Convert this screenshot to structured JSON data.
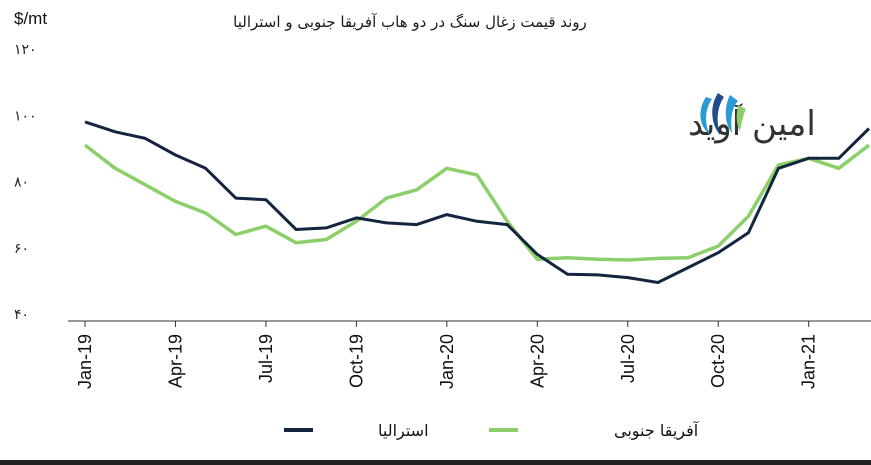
{
  "chart_data": {
    "type": "line",
    "title": "روند قیمت زغال سنگ در دو هاب آفریقا جنوبی و استرالیا",
    "unit_label": "$/mt",
    "ylim": [
      40,
      120
    ],
    "yticks": [
      40,
      60,
      80,
      100,
      120
    ],
    "ytick_labels": [
      "۴۰",
      "۶۰",
      "۸۰",
      "۱۰۰",
      "۱۲۰"
    ],
    "x": [
      "Jan-19",
      "Feb-19",
      "Mar-19",
      "Apr-19",
      "May-19",
      "Jun-19",
      "Jul-19",
      "Aug-19",
      "Sep-19",
      "Oct-19",
      "Nov-19",
      "Dec-19",
      "Jan-20",
      "Feb-20",
      "Mar-20",
      "Apr-20",
      "May-20",
      "Jun-20",
      "Jul-20",
      "Aug-20",
      "Sep-20",
      "Oct-20",
      "Nov-20",
      "Dec-20",
      "Jan-21",
      "Feb-21",
      "Mar-21"
    ],
    "xtick_labels": [
      "Jan-19",
      "Apr-19",
      "Jul-19",
      "Oct-19",
      "Jan-20",
      "Apr-20",
      "Jul-20",
      "Oct-20",
      "Jan-21"
    ],
    "xtick_indices": [
      0,
      3,
      6,
      9,
      12,
      15,
      18,
      21,
      24
    ],
    "series": [
      {
        "name": "استرالیا",
        "color": "#14253f",
        "values": [
          98,
          95,
          93,
          88,
          84,
          75,
          74.5,
          65.5,
          66,
          69,
          67.5,
          67,
          70,
          68,
          67,
          58,
          52,
          51.8,
          51,
          49.5,
          54,
          58.5,
          64.5,
          84,
          87,
          87,
          96
        ]
      },
      {
        "name": "آفریقا جنوبی",
        "color": "#8ccf6a",
        "values": [
          91,
          84,
          79,
          74,
          70.5,
          64,
          66.5,
          61.5,
          62.5,
          68,
          75,
          77.5,
          84,
          82,
          68,
          56.5,
          57,
          56.5,
          56.3,
          56.8,
          57,
          60.5,
          69.5,
          85,
          87,
          84,
          91
        ]
      }
    ],
    "grid": false,
    "legend_placement": "bottom",
    "logo": {
      "text": "امین آوید",
      "icon": "logo-swoosh-icon",
      "colors": [
        "#2b9bd6",
        "#1f4e8c",
        "#8ccf6a"
      ]
    }
  }
}
